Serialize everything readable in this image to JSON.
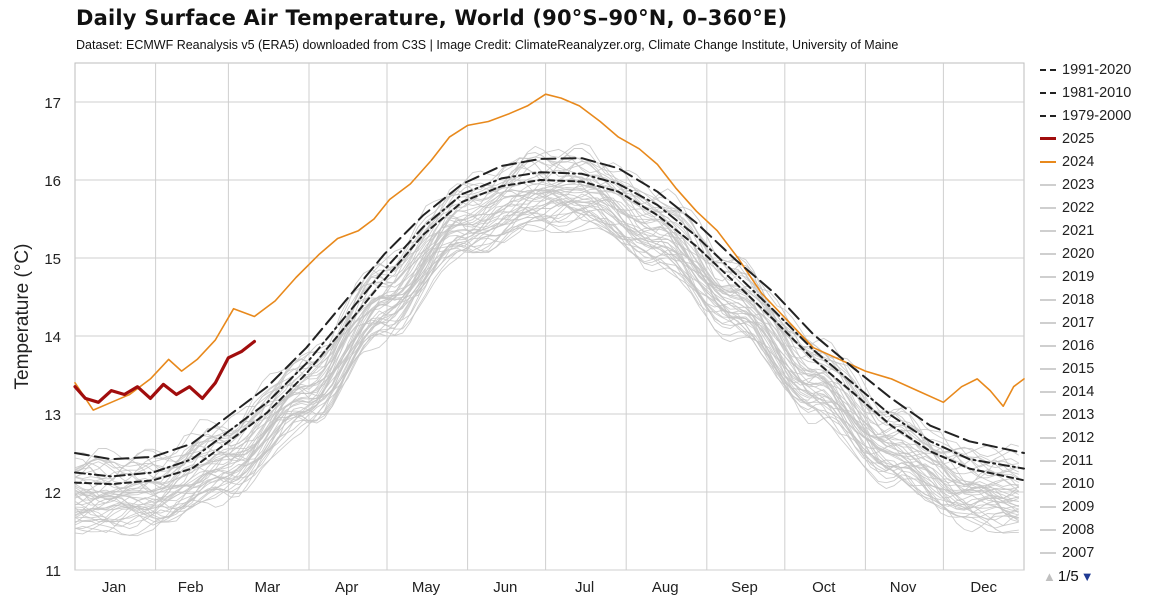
{
  "header": {
    "title": "Daily Surface Air Temperature, World (90°S–90°N, 0–360°E)",
    "subtitle": "Dataset: ECMWF Reanalysis v5 (ERA5) downloaded from C3S | Image Credit: ClimateReanalyzer.org, Climate Change Institute, University of Maine"
  },
  "chart_data": {
    "type": "line",
    "title": "Daily Surface Air Temperature, World (90°S–90°N, 0–360°E)",
    "ylabel": "Temperature (°C)",
    "xlabel": "",
    "ylim": [
      11,
      17.5
    ],
    "xlim": [
      1,
      366
    ],
    "yticks": [
      11,
      12,
      13,
      14,
      15,
      16,
      17
    ],
    "month_labels": [
      "Jan",
      "Feb",
      "Mar",
      "Apr",
      "May",
      "Jun",
      "Jul",
      "Aug",
      "Sep",
      "Oct",
      "Nov",
      "Dec"
    ],
    "month_starts": [
      1,
      32,
      60,
      91,
      121,
      152,
      182,
      213,
      244,
      274,
      305,
      335
    ],
    "grid": true,
    "legend_position": "right",
    "series": [
      {
        "name": "1991-2020",
        "color": "#222222",
        "dash": "14 6",
        "width": 2,
        "points": [
          [
            1,
            12.5
          ],
          [
            15,
            12.42
          ],
          [
            31,
            12.45
          ],
          [
            46,
            12.62
          ],
          [
            59,
            12.95
          ],
          [
            75,
            13.35
          ],
          [
            90,
            13.85
          ],
          [
            105,
            14.45
          ],
          [
            120,
            15.05
          ],
          [
            135,
            15.55
          ],
          [
            150,
            15.95
          ],
          [
            165,
            16.18
          ],
          [
            180,
            16.27
          ],
          [
            196,
            16.28
          ],
          [
            210,
            16.15
          ],
          [
            225,
            15.85
          ],
          [
            240,
            15.45
          ],
          [
            255,
            14.98
          ],
          [
            270,
            14.55
          ],
          [
            285,
            14.02
          ],
          [
            300,
            13.6
          ],
          [
            315,
            13.2
          ],
          [
            330,
            12.85
          ],
          [
            345,
            12.65
          ],
          [
            366,
            12.5
          ]
        ]
      },
      {
        "name": "1981-2010",
        "color": "#222222",
        "dash": "10 4 2 4",
        "width": 2,
        "points": [
          [
            1,
            12.25
          ],
          [
            15,
            12.2
          ],
          [
            31,
            12.25
          ],
          [
            46,
            12.42
          ],
          [
            59,
            12.75
          ],
          [
            75,
            13.15
          ],
          [
            90,
            13.65
          ],
          [
            105,
            14.25
          ],
          [
            120,
            14.85
          ],
          [
            135,
            15.4
          ],
          [
            150,
            15.82
          ],
          [
            165,
            16.02
          ],
          [
            180,
            16.1
          ],
          [
            196,
            16.08
          ],
          [
            210,
            15.95
          ],
          [
            225,
            15.68
          ],
          [
            240,
            15.28
          ],
          [
            255,
            14.8
          ],
          [
            270,
            14.32
          ],
          [
            285,
            13.82
          ],
          [
            300,
            13.4
          ],
          [
            315,
            12.98
          ],
          [
            330,
            12.65
          ],
          [
            345,
            12.42
          ],
          [
            366,
            12.3
          ]
        ]
      },
      {
        "name": "1979-2000",
        "color": "#222222",
        "dash": "6 4",
        "width": 2,
        "points": [
          [
            1,
            12.12
          ],
          [
            15,
            12.1
          ],
          [
            31,
            12.15
          ],
          [
            46,
            12.3
          ],
          [
            59,
            12.62
          ],
          [
            75,
            13.02
          ],
          [
            90,
            13.52
          ],
          [
            105,
            14.12
          ],
          [
            120,
            14.72
          ],
          [
            135,
            15.3
          ],
          [
            150,
            15.72
          ],
          [
            165,
            15.92
          ],
          [
            180,
            16.0
          ],
          [
            196,
            15.98
          ],
          [
            210,
            15.85
          ],
          [
            225,
            15.55
          ],
          [
            240,
            15.15
          ],
          [
            255,
            14.68
          ],
          [
            270,
            14.2
          ],
          [
            285,
            13.7
          ],
          [
            300,
            13.28
          ],
          [
            315,
            12.85
          ],
          [
            330,
            12.52
          ],
          [
            345,
            12.3
          ],
          [
            366,
            12.15
          ]
        ]
      },
      {
        "name": "2025",
        "color": "#a10d0d",
        "dash": "",
        "width": 3.2,
        "points": [
          [
            1,
            13.35
          ],
          [
            5,
            13.2
          ],
          [
            10,
            13.15
          ],
          [
            15,
            13.3
          ],
          [
            20,
            13.25
          ],
          [
            25,
            13.35
          ],
          [
            30,
            13.2
          ],
          [
            35,
            13.38
          ],
          [
            40,
            13.25
          ],
          [
            45,
            13.35
          ],
          [
            50,
            13.2
          ],
          [
            55,
            13.4
          ],
          [
            60,
            13.72
          ],
          [
            65,
            13.8
          ],
          [
            70,
            13.93
          ]
        ]
      },
      {
        "name": "2024",
        "color": "#e8891c",
        "dash": "",
        "width": 1.6,
        "points": [
          [
            1,
            13.4
          ],
          [
            8,
            13.05
          ],
          [
            15,
            13.15
          ],
          [
            22,
            13.25
          ],
          [
            30,
            13.45
          ],
          [
            37,
            13.7
          ],
          [
            42,
            13.55
          ],
          [
            48,
            13.7
          ],
          [
            55,
            13.95
          ],
          [
            62,
            14.35
          ],
          [
            70,
            14.25
          ],
          [
            78,
            14.45
          ],
          [
            86,
            14.75
          ],
          [
            95,
            15.05
          ],
          [
            102,
            15.25
          ],
          [
            110,
            15.35
          ],
          [
            116,
            15.5
          ],
          [
            122,
            15.75
          ],
          [
            130,
            15.95
          ],
          [
            138,
            16.25
          ],
          [
            145,
            16.55
          ],
          [
            152,
            16.7
          ],
          [
            160,
            16.75
          ],
          [
            168,
            16.85
          ],
          [
            175,
            16.95
          ],
          [
            182,
            17.1
          ],
          [
            188,
            17.05
          ],
          [
            195,
            16.95
          ],
          [
            203,
            16.75
          ],
          [
            210,
            16.55
          ],
          [
            218,
            16.4
          ],
          [
            225,
            16.2
          ],
          [
            232,
            15.9
          ],
          [
            240,
            15.6
          ],
          [
            248,
            15.35
          ],
          [
            256,
            15.0
          ],
          [
            265,
            14.55
          ],
          [
            275,
            14.2
          ],
          [
            285,
            13.85
          ],
          [
            295,
            13.7
          ],
          [
            305,
            13.55
          ],
          [
            315,
            13.45
          ],
          [
            325,
            13.3
          ],
          [
            335,
            13.15
          ],
          [
            342,
            13.35
          ],
          [
            348,
            13.45
          ],
          [
            353,
            13.3
          ],
          [
            358,
            13.1
          ],
          [
            362,
            13.35
          ],
          [
            366,
            13.45
          ]
        ]
      },
      {
        "name": "2023",
        "color": "#cfcfcf",
        "dash": "",
        "width": 1
      },
      {
        "name": "2022",
        "color": "#cfcfcf",
        "dash": "",
        "width": 1
      },
      {
        "name": "2021",
        "color": "#cfcfcf",
        "dash": "",
        "width": 1
      },
      {
        "name": "2020",
        "color": "#cfcfcf",
        "dash": "",
        "width": 1
      },
      {
        "name": "2019",
        "color": "#cfcfcf",
        "dash": "",
        "width": 1
      },
      {
        "name": "2018",
        "color": "#cfcfcf",
        "dash": "",
        "width": 1
      },
      {
        "name": "2017",
        "color": "#cfcfcf",
        "dash": "",
        "width": 1
      },
      {
        "name": "2016",
        "color": "#cfcfcf",
        "dash": "",
        "width": 1
      },
      {
        "name": "2015",
        "color": "#cfcfcf",
        "dash": "",
        "width": 1
      },
      {
        "name": "2014",
        "color": "#cfcfcf",
        "dash": "",
        "width": 1
      },
      {
        "name": "2013",
        "color": "#cfcfcf",
        "dash": "",
        "width": 1
      },
      {
        "name": "2012",
        "color": "#cfcfcf",
        "dash": "",
        "width": 1
      },
      {
        "name": "2011",
        "color": "#cfcfcf",
        "dash": "",
        "width": 1
      },
      {
        "name": "2010",
        "color": "#cfcfcf",
        "dash": "",
        "width": 1
      },
      {
        "name": "2009",
        "color": "#cfcfcf",
        "dash": "",
        "width": 1
      },
      {
        "name": "2008",
        "color": "#cfcfcf",
        "dash": "",
        "width": 1
      },
      {
        "name": "2007",
        "color": "#cfcfcf",
        "dash": "",
        "width": 1
      }
    ]
  },
  "legend_pager": {
    "page_text": "1/5",
    "up_icon": "▲",
    "down_icon": "▼"
  }
}
